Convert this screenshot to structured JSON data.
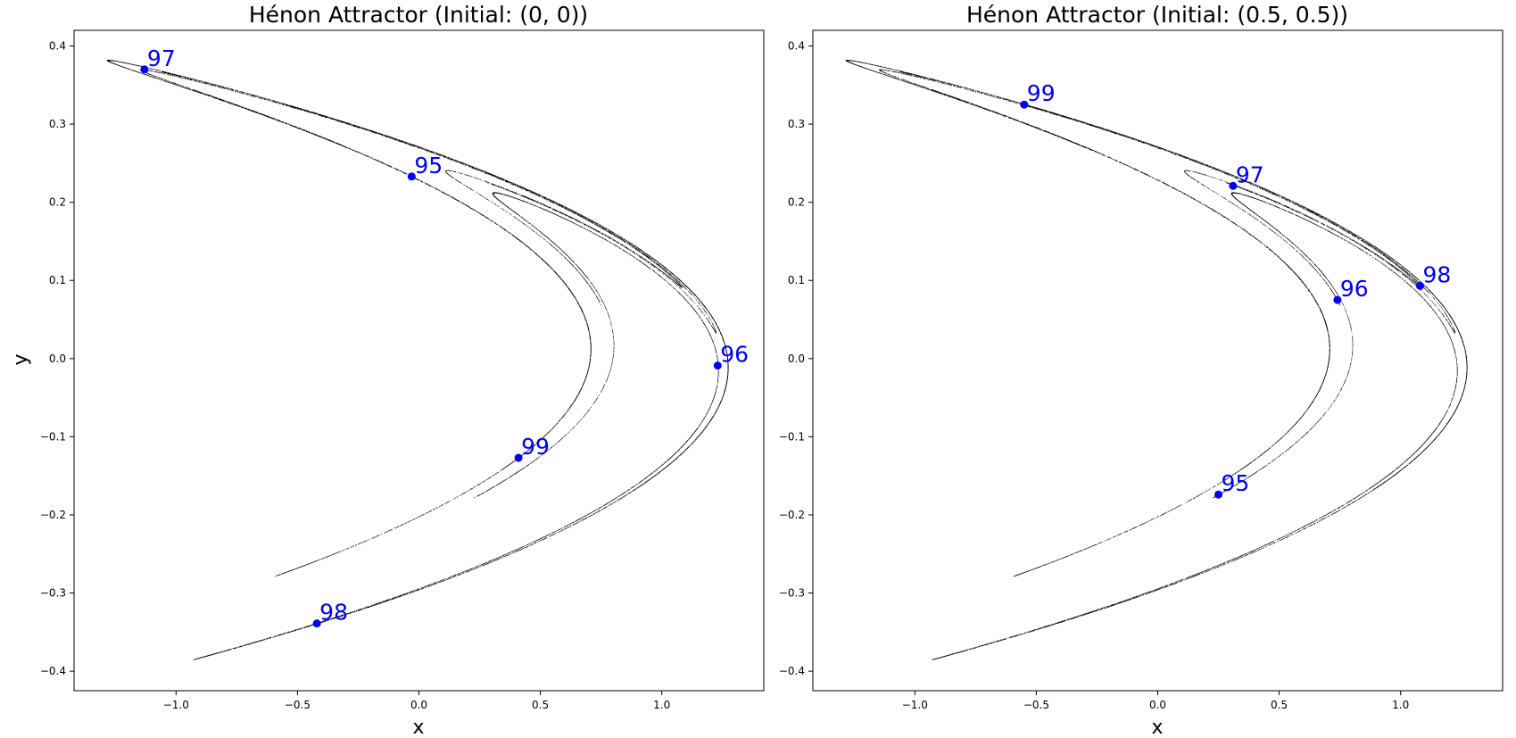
{
  "chart_data": [
    {
      "type": "scatter",
      "title": "Hénon Attractor (Initial: (0, 0))",
      "xlabel": "x",
      "ylabel": "y",
      "xlim": [
        -1.42,
        1.42
      ],
      "ylim": [
        -0.425,
        0.42
      ],
      "xticks": [
        -1.0,
        -0.5,
        0.0,
        0.5,
        1.0
      ],
      "xtick_labels": [
        "−1.0",
        "−0.5",
        "0.0",
        "0.5",
        "1.0"
      ],
      "yticks": [
        -0.4,
        -0.3,
        -0.2,
        -0.1,
        0.0,
        0.1,
        0.2,
        0.3,
        0.4
      ],
      "ytick_labels": [
        "−0.4",
        "−0.3",
        "−0.2",
        "−0.1",
        "0.0",
        "0.1",
        "0.2",
        "0.3",
        "0.4"
      ],
      "grid": false,
      "initial": [
        0,
        0
      ],
      "attractor_color": "#000000",
      "highlight_color": "#0000ee",
      "highlighted_points": [
        {
          "label": "95",
          "x": -0.03,
          "y": 0.233
        },
        {
          "label": "96",
          "x": 1.23,
          "y": -0.009
        },
        {
          "label": "97",
          "x": -1.13,
          "y": 0.37
        },
        {
          "label": "98",
          "x": -0.42,
          "y": -0.339
        },
        {
          "label": "99",
          "x": 0.41,
          "y": -0.127
        }
      ]
    },
    {
      "type": "scatter",
      "title": "Hénon Attractor (Initial: (0.5, 0.5))",
      "xlabel": "x",
      "ylabel": "",
      "xlim": [
        -1.42,
        1.42
      ],
      "ylim": [
        -0.425,
        0.42
      ],
      "xticks": [
        -1.0,
        -0.5,
        0.0,
        0.5,
        1.0
      ],
      "xtick_labels": [
        "−1.0",
        "−0.5",
        "0.0",
        "0.5",
        "1.0"
      ],
      "yticks": [
        -0.4,
        -0.3,
        -0.2,
        -0.1,
        0.0,
        0.1,
        0.2,
        0.3,
        0.4
      ],
      "ytick_labels": [
        "−0.4",
        "−0.3",
        "−0.2",
        "−0.1",
        "0.0",
        "0.1",
        "0.2",
        "0.3",
        "0.4"
      ],
      "grid": false,
      "initial": [
        0.5,
        0.5
      ],
      "attractor_color": "#000000",
      "highlight_color": "#0000ee",
      "highlighted_points": [
        {
          "label": "95",
          "x": 0.25,
          "y": -0.174
        },
        {
          "label": "96",
          "x": 0.74,
          "y": 0.075
        },
        {
          "label": "97",
          "x": 0.31,
          "y": 0.221
        },
        {
          "label": "98",
          "x": 1.08,
          "y": 0.093
        },
        {
          "label": "99",
          "x": -0.55,
          "y": 0.325
        }
      ]
    }
  ]
}
